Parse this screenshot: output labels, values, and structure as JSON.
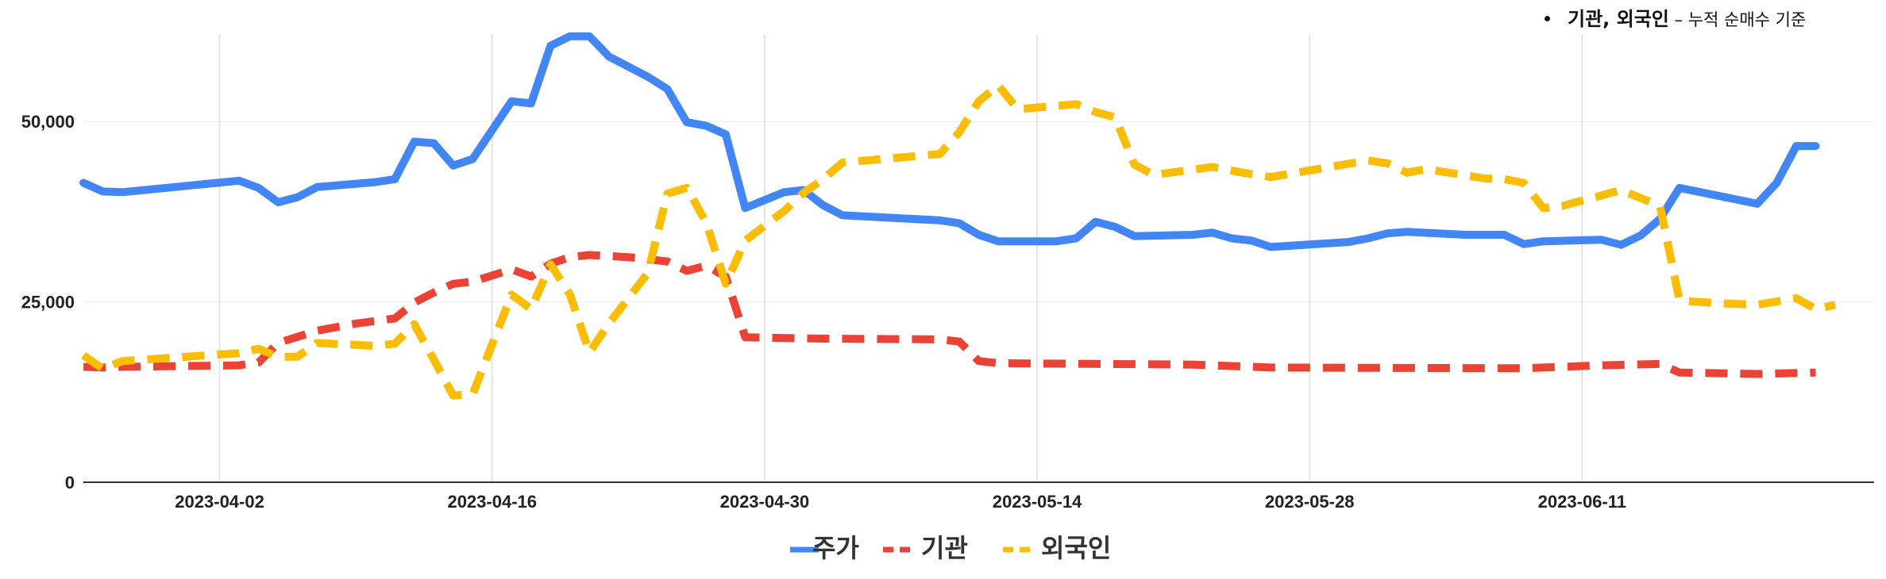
{
  "annotation": {
    "bold_text": "기관, 외국인",
    "light_text": " – 누적 순매수 기준"
  },
  "chart_data": {
    "type": "line",
    "x_start": "2023-03-26",
    "x_end": "2023-06-26",
    "ylim": [
      0,
      62000
    ],
    "y_ticks": [
      {
        "value": 0,
        "label": "0"
      },
      {
        "value": 25000,
        "label": "25,000"
      },
      {
        "value": 50000,
        "label": "50,000"
      }
    ],
    "x_ticks": [
      "2023-04-02",
      "2023-04-16",
      "2023-04-30",
      "2023-05-14",
      "2023-05-28",
      "2023-06-11"
    ],
    "grid": true,
    "legend_position": "bottom",
    "series": [
      {
        "name": "주가",
        "color": "#4285F4",
        "dash": "solid",
        "points": [
          [
            "2023-03-26",
            41500
          ],
          [
            "2023-03-27",
            40300
          ],
          [
            "2023-03-28",
            40200
          ],
          [
            "2023-04-03",
            41800
          ],
          [
            "2023-04-04",
            40800
          ],
          [
            "2023-04-05",
            38800
          ],
          [
            "2023-04-06",
            39500
          ],
          [
            "2023-04-07",
            40900
          ],
          [
            "2023-04-10",
            41600
          ],
          [
            "2023-04-11",
            42000
          ],
          [
            "2023-04-12",
            47200
          ],
          [
            "2023-04-13",
            47000
          ],
          [
            "2023-04-14",
            43900
          ],
          [
            "2023-04-15",
            44800
          ],
          [
            "2023-04-17",
            52800
          ],
          [
            "2023-04-18",
            52500
          ],
          [
            "2023-04-19",
            60500
          ],
          [
            "2023-04-20",
            61800
          ],
          [
            "2023-04-21",
            61800
          ],
          [
            "2023-04-22",
            59000
          ],
          [
            "2023-04-24",
            56200
          ],
          [
            "2023-04-25",
            54500
          ],
          [
            "2023-04-26",
            49900
          ],
          [
            "2023-04-27",
            49400
          ],
          [
            "2023-04-28",
            48200
          ],
          [
            "2023-04-29",
            38000
          ],
          [
            "2023-05-01",
            40200
          ],
          [
            "2023-05-02",
            40500
          ],
          [
            "2023-05-03",
            38400
          ],
          [
            "2023-05-04",
            37000
          ],
          [
            "2023-05-09",
            36300
          ],
          [
            "2023-05-10",
            35900
          ],
          [
            "2023-05-11",
            34300
          ],
          [
            "2023-05-12",
            33400
          ],
          [
            "2023-05-15",
            33400
          ],
          [
            "2023-05-16",
            33800
          ],
          [
            "2023-05-17",
            36100
          ],
          [
            "2023-05-18",
            35400
          ],
          [
            "2023-05-19",
            34100
          ],
          [
            "2023-05-22",
            34300
          ],
          [
            "2023-05-23",
            34600
          ],
          [
            "2023-05-24",
            33800
          ],
          [
            "2023-05-25",
            33500
          ],
          [
            "2023-05-26",
            32600
          ],
          [
            "2023-05-30",
            33300
          ],
          [
            "2023-05-31",
            33800
          ],
          [
            "2023-06-01",
            34500
          ],
          [
            "2023-06-02",
            34700
          ],
          [
            "2023-06-05",
            34300
          ],
          [
            "2023-06-06",
            34300
          ],
          [
            "2023-06-07",
            34300
          ],
          [
            "2023-06-08",
            33000
          ],
          [
            "2023-06-09",
            33400
          ],
          [
            "2023-06-12",
            33600
          ],
          [
            "2023-06-13",
            32900
          ],
          [
            "2023-06-14",
            34200
          ],
          [
            "2023-06-15",
            36500
          ],
          [
            "2023-06-16",
            40800
          ],
          [
            "2023-06-20",
            38600
          ],
          [
            "2023-06-21",
            41500
          ],
          [
            "2023-06-22",
            46600
          ],
          [
            "2023-06-23",
            46600
          ]
        ]
      },
      {
        "name": "기관",
        "color": "#EA4335",
        "dash": "dashed",
        "points": [
          [
            "2023-03-26",
            16000
          ],
          [
            "2023-03-27",
            15900
          ],
          [
            "2023-03-28",
            16000
          ],
          [
            "2023-04-03",
            16200
          ],
          [
            "2023-04-04",
            16600
          ],
          [
            "2023-04-05",
            19300
          ],
          [
            "2023-04-07",
            21000
          ],
          [
            "2023-04-09",
            22000
          ],
          [
            "2023-04-11",
            22700
          ],
          [
            "2023-04-12",
            24900
          ],
          [
            "2023-04-13",
            26300
          ],
          [
            "2023-04-14",
            27500
          ],
          [
            "2023-04-15",
            27800
          ],
          [
            "2023-04-17",
            29500
          ],
          [
            "2023-04-18",
            28500
          ],
          [
            "2023-04-19",
            30300
          ],
          [
            "2023-04-20",
            31200
          ],
          [
            "2023-04-21",
            31500
          ],
          [
            "2023-04-23",
            31200
          ],
          [
            "2023-04-25",
            30600
          ],
          [
            "2023-04-26",
            29300
          ],
          [
            "2023-04-27",
            30000
          ],
          [
            "2023-04-28",
            28500
          ],
          [
            "2023-04-29",
            20100
          ],
          [
            "2023-05-01",
            20000
          ],
          [
            "2023-05-03",
            19900
          ],
          [
            "2023-05-09",
            19800
          ],
          [
            "2023-05-10",
            19500
          ],
          [
            "2023-05-11",
            16800
          ],
          [
            "2023-05-12",
            16500
          ],
          [
            "2023-05-17",
            16400
          ],
          [
            "2023-05-22",
            16300
          ],
          [
            "2023-05-24",
            16100
          ],
          [
            "2023-05-26",
            15900
          ],
          [
            "2023-06-08",
            15800
          ],
          [
            "2023-06-12",
            16200
          ],
          [
            "2023-06-15",
            16400
          ],
          [
            "2023-06-16",
            15200
          ],
          [
            "2023-06-20",
            15000
          ],
          [
            "2023-06-23",
            15200
          ]
        ]
      },
      {
        "name": "외국인",
        "color": "#FBBC04",
        "dash": "dashed",
        "points": [
          [
            "2023-03-26",
            17600
          ],
          [
            "2023-03-27",
            15700
          ],
          [
            "2023-03-28",
            16800
          ],
          [
            "2023-04-03",
            17900
          ],
          [
            "2023-04-04",
            18500
          ],
          [
            "2023-04-05",
            17400
          ],
          [
            "2023-04-06",
            17400
          ],
          [
            "2023-04-07",
            19300
          ],
          [
            "2023-04-10",
            18900
          ],
          [
            "2023-04-11",
            19200
          ],
          [
            "2023-04-12",
            21900
          ],
          [
            "2023-04-13",
            17000
          ],
          [
            "2023-04-14",
            12000
          ],
          [
            "2023-04-15",
            12200
          ],
          [
            "2023-04-17",
            26000
          ],
          [
            "2023-04-18",
            24000
          ],
          [
            "2023-04-19",
            30200
          ],
          [
            "2023-04-20",
            26000
          ],
          [
            "2023-04-21",
            18000
          ],
          [
            "2023-04-22",
            22000
          ],
          [
            "2023-04-24",
            29000
          ],
          [
            "2023-04-25",
            40000
          ],
          [
            "2023-04-26",
            40800
          ],
          [
            "2023-04-27",
            36000
          ],
          [
            "2023-04-28",
            27500
          ],
          [
            "2023-04-29",
            33500
          ],
          [
            "2023-05-01",
            37600
          ],
          [
            "2023-05-02",
            40100
          ],
          [
            "2023-05-03",
            42000
          ],
          [
            "2023-05-04",
            44300
          ],
          [
            "2023-05-09",
            45500
          ],
          [
            "2023-05-10",
            48500
          ],
          [
            "2023-05-11",
            52800
          ],
          [
            "2023-05-12",
            55000
          ],
          [
            "2023-05-13",
            51700
          ],
          [
            "2023-05-16",
            52400
          ],
          [
            "2023-05-17",
            51300
          ],
          [
            "2023-05-18",
            50600
          ],
          [
            "2023-05-19",
            44000
          ],
          [
            "2023-05-20",
            42600
          ],
          [
            "2023-05-23",
            43700
          ],
          [
            "2023-05-25",
            42700
          ],
          [
            "2023-05-26",
            42300
          ],
          [
            "2023-05-31",
            44600
          ],
          [
            "2023-06-01",
            44200
          ],
          [
            "2023-06-02",
            42900
          ],
          [
            "2023-06-03",
            43400
          ],
          [
            "2023-06-06",
            42100
          ],
          [
            "2023-06-07",
            42000
          ],
          [
            "2023-06-08",
            41500
          ],
          [
            "2023-06-09",
            38000
          ],
          [
            "2023-06-10",
            38300
          ],
          [
            "2023-06-13",
            40500
          ],
          [
            "2023-06-15",
            38300
          ],
          [
            "2023-06-16",
            25200
          ],
          [
            "2023-06-18",
            24800
          ],
          [
            "2023-06-20",
            24600
          ],
          [
            "2023-06-22",
            25500
          ],
          [
            "2023-06-23",
            24000
          ],
          [
            "2023-06-24",
            24600
          ]
        ]
      }
    ]
  }
}
